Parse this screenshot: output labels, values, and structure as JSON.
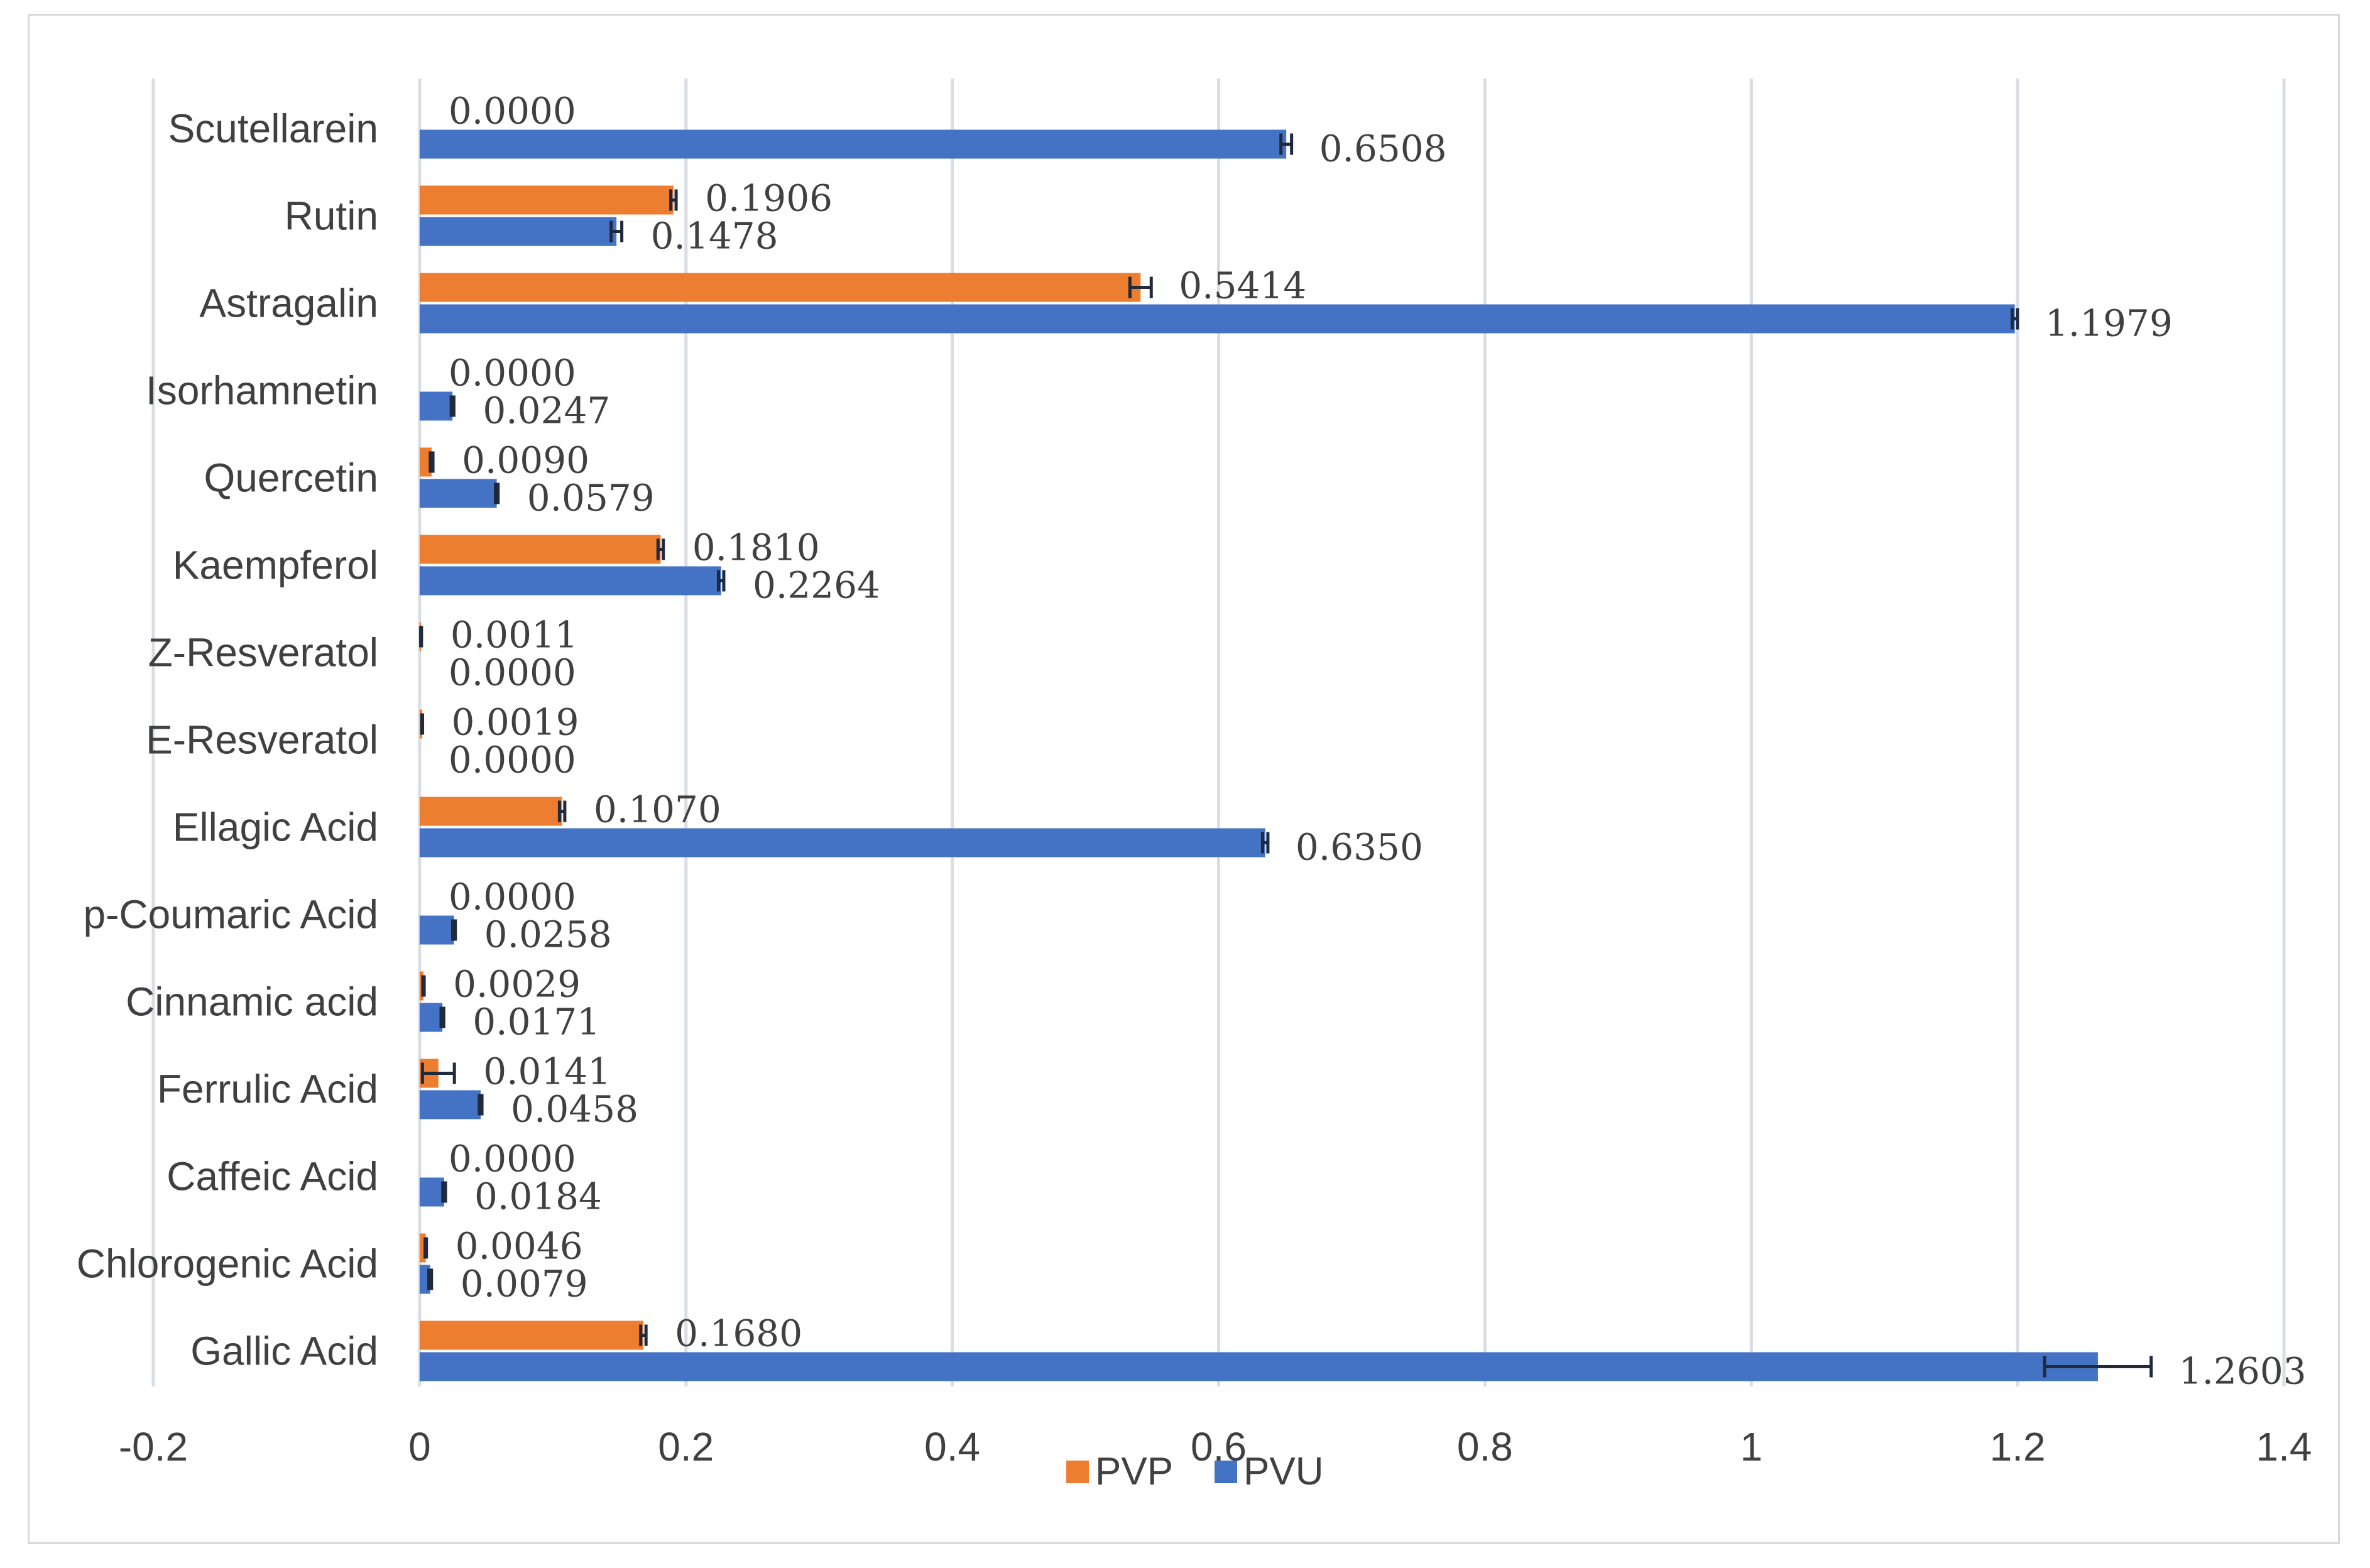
{
  "chart_data": {
    "type": "bar",
    "orientation": "horizontal",
    "title": "",
    "xlabel": "",
    "ylabel": "",
    "xlim": [
      -0.2,
      1.4
    ],
    "x_ticks": [
      -0.2,
      0,
      0.2,
      0.4,
      0.6,
      0.8,
      1,
      1.2,
      1.4
    ],
    "x_tick_labels": [
      "-0.2",
      "0",
      "0.2",
      "0.4",
      "0.6",
      "0.8",
      "1",
      "1.2",
      "1.4"
    ],
    "grid": true,
    "legend_position": "bottom",
    "categories": [
      "Scutellarein",
      "Rutin",
      "Astragalin",
      "Isorhamnetin",
      "Quercetin",
      "Kaempferol",
      "Z-Resveratol",
      "E-Resveratol",
      "Ellagic Acid",
      "p-Coumaric Acid",
      "Cinnamic acid",
      "Ferrulic Acid",
      "Caffeic Acid",
      "Chlorogenic Acid",
      "Gallic Acid"
    ],
    "series": [
      {
        "name": "PVP",
        "color": "#ed7d31",
        "values": [
          0,
          0.1906,
          0.5414,
          0,
          0.009,
          0.181,
          0.0011,
          0.0019,
          0.107,
          0,
          0.0029,
          0.0141,
          0,
          0.0046,
          0.168
        ],
        "labels": [
          "0.0000",
          "0.1906",
          "0.5414",
          "0.0000",
          "0.0090",
          "0.1810",
          "0.0011",
          "0.0019",
          "0.1070",
          "0.0000",
          "0.0029",
          "0.0141",
          "0.0000",
          "0.0046",
          "0.1680"
        ],
        "errors": [
          0,
          0.002,
          0.008,
          0,
          0.001,
          0.002,
          0.0003,
          0.0003,
          0.002,
          0,
          0.0005,
          0.012,
          0,
          0.0005,
          0.002
        ]
      },
      {
        "name": "PVU",
        "color": "#4472c4",
        "values": [
          0.6508,
          0.1478,
          1.1979,
          0.0247,
          0.0579,
          0.2264,
          0,
          0,
          0.635,
          0.0258,
          0.0171,
          0.0458,
          0.0184,
          0.0079,
          1.2603
        ],
        "labels": [
          "0.6508",
          "0.1478",
          "1.1979",
          "0.0247",
          "0.0579",
          "0.2264",
          "0.0000",
          "0.0000",
          "0.6350",
          "0.0258",
          "0.0171",
          "0.0458",
          "0.0184",
          "0.0079",
          "1.2603"
        ],
        "errors": [
          0.004,
          0.004,
          0.002,
          0.001,
          0.001,
          0.002,
          0,
          0,
          0.002,
          0.001,
          0.001,
          0.001,
          0.001,
          0.001,
          0.04
        ]
      }
    ]
  }
}
